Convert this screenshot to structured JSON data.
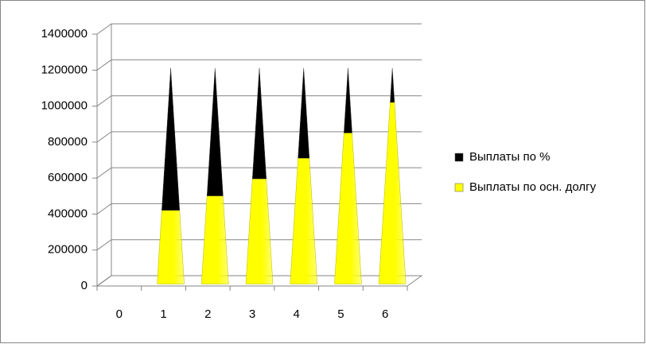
{
  "chart_data": {
    "type": "pyramid-stacked",
    "categories": [
      "0",
      "1",
      "2",
      "3",
      "4",
      "5",
      "6"
    ],
    "series": [
      {
        "name": "Выплаты по осн. долгу",
        "color": "#ffff00",
        "values": [
          0,
          410000,
          490000,
          585000,
          700000,
          840000,
          1010000
        ]
      },
      {
        "name": "Выплаты по %",
        "color": "#000000",
        "values": [
          0,
          790000,
          710000,
          615000,
          500000,
          360000,
          190000
        ]
      }
    ],
    "ylim": [
      0,
      1400000
    ],
    "yticks": [
      0,
      200000,
      400000,
      600000,
      800000,
      1000000,
      1200000,
      1400000
    ],
    "grid": true
  }
}
